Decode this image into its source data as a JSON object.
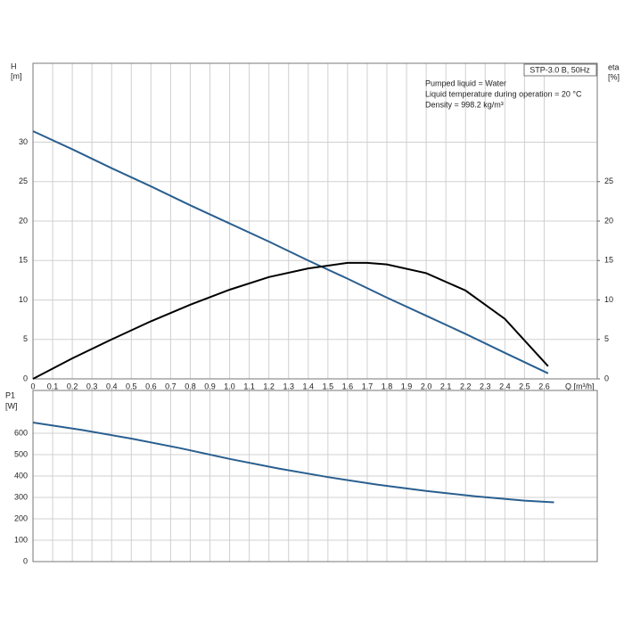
{
  "chart_data": [
    {
      "type": "line",
      "y_label": "H",
      "y_unit": "[m]",
      "y2_label": "eta",
      "y2_unit": "[%]",
      "x_label": "Q [m³/h]",
      "box_label": "STP-3.0 B, 50Hz",
      "notes": [
        "Pumped liquid = Water",
        "Liquid temperature during operation = 20 °C",
        "Density = 998.2 kg/m³"
      ],
      "x": [
        0,
        0.2,
        0.4,
        0.6,
        0.8,
        1.0,
        1.2,
        1.4,
        1.6,
        1.7,
        1.8,
        2.0,
        2.2,
        2.4,
        2.62
      ],
      "series": [
        {
          "color": "#2a5f8f",
          "values": [
            31.4,
            29.1,
            26.7,
            24.4,
            22.0,
            19.7,
            17.4,
            15.0,
            12.7,
            11.5,
            10.3,
            8.0,
            5.7,
            3.3,
            0.7
          ]
        },
        {
          "color": "#000000",
          "axis": "y2",
          "values": [
            0,
            2.6,
            5.0,
            7.3,
            9.4,
            11.3,
            12.9,
            14.0,
            14.7,
            14.7,
            14.5,
            13.4,
            11.2,
            7.6,
            1.6
          ]
        }
      ],
      "xlim": [
        0,
        2.87
      ],
      "xticks": [
        0,
        0.1,
        0.2,
        0.3,
        0.4,
        0.5,
        0.6,
        0.7,
        0.8,
        0.9,
        {
          "value": 1,
          "label": "1.0"
        },
        1.1,
        1.2,
        1.3,
        1.4,
        1.5,
        1.6,
        1.7,
        1.8,
        1.9,
        {
          "value": 2,
          "label": "2.0"
        },
        2.1,
        2.2,
        2.3,
        2.4,
        2.5,
        2.6
      ],
      "ylim": [
        0,
        40
      ],
      "yticks": [
        0,
        5,
        10,
        15,
        20,
        25,
        30
      ],
      "y2lim": [
        0,
        40
      ],
      "y2ticks": [
        0,
        5,
        10,
        15,
        20,
        25
      ],
      "grid": true
    },
    {
      "type": "line",
      "y_label": "P1",
      "y_unit": "[W]",
      "x": [
        0,
        0.25,
        0.5,
        0.75,
        1.0,
        1.25,
        1.5,
        1.75,
        2.0,
        2.25,
        2.5,
        2.65
      ],
      "series": [
        {
          "color": "#2a5f8f",
          "values": [
            650,
            615,
            575,
            530,
            480,
            435,
            395,
            360,
            330,
            305,
            285,
            277
          ]
        }
      ],
      "xlim": [
        0,
        2.87
      ],
      "ylim": [
        0,
        800
      ],
      "yticks": [
        0,
        100,
        200,
        300,
        400,
        500,
        600
      ],
      "grid": true
    }
  ]
}
